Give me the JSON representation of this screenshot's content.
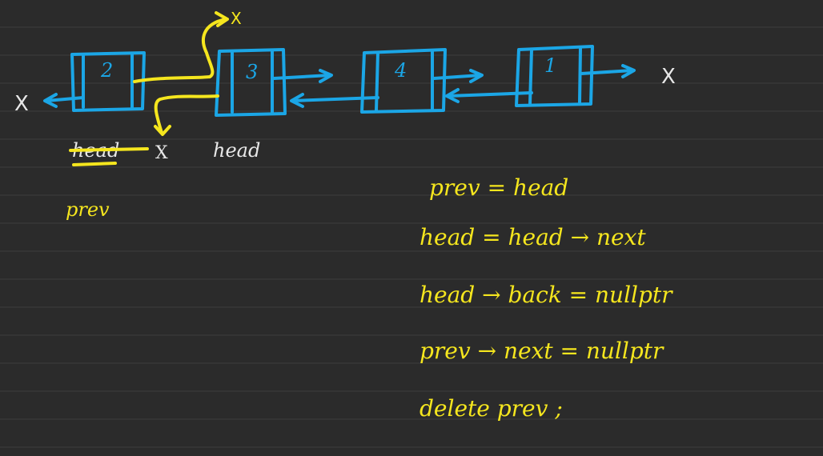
{
  "diagram": {
    "nodes": [
      {
        "label": "2"
      },
      {
        "label": "3"
      },
      {
        "label": "4"
      },
      {
        "label": "1"
      }
    ],
    "null_marks": {
      "left": "X",
      "right": "X",
      "top": "X",
      "below_first": "X"
    },
    "pointer_labels": {
      "old_head_struck": "head",
      "new_head": "head",
      "prev": "prev"
    }
  },
  "code_lines": [
    "prev = head",
    "head = head → next",
    "head → back = nullptr",
    "prev → next = nullptr",
    "delete prev ;"
  ],
  "colors": {
    "background": "#2b2b2b",
    "ruled_line": "#3d3d3d",
    "node_blue": "#1ba6e6",
    "highlight_yellow": "#f5e61e",
    "mark_white": "#e8e8e8"
  }
}
